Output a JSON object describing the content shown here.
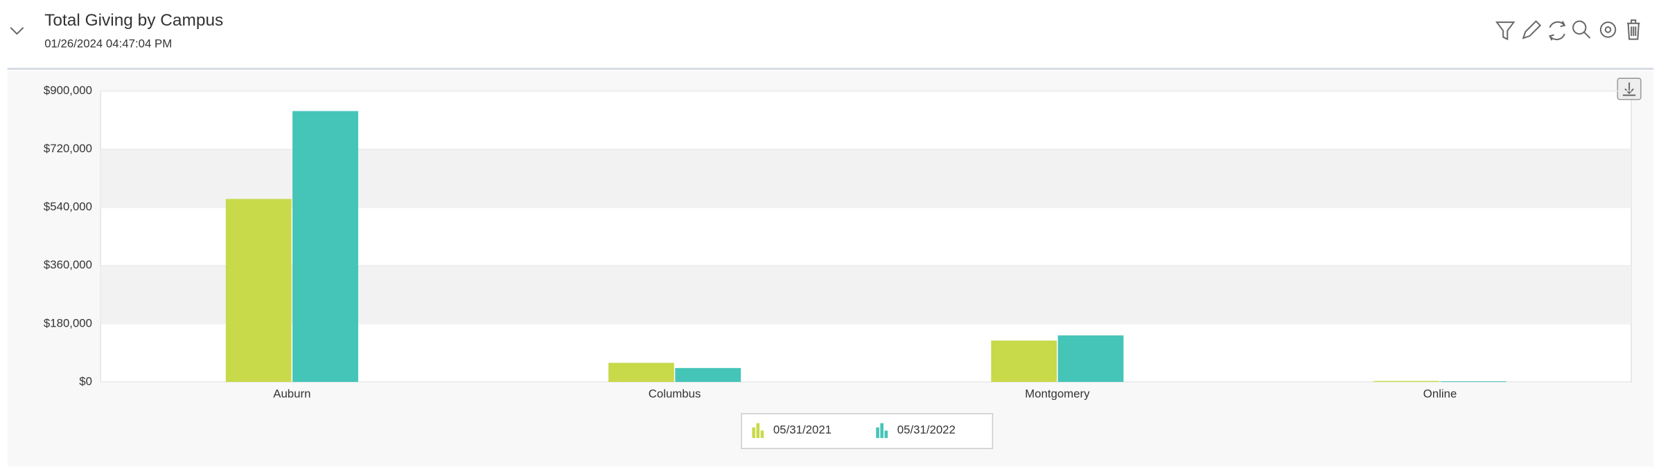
{
  "chart_data": {
    "type": "bar",
    "title": "Total Giving by Campus",
    "subtitle": "01/26/2024 04:47:04 PM",
    "categories": [
      "Auburn",
      "Columbus",
      "Montgomery",
      "Online"
    ],
    "series": [
      {
        "name": "05/31/2021",
        "color": "#c8d94a",
        "values": [
          566000,
          59000,
          128000,
          3000
        ]
      },
      {
        "name": "05/31/2022",
        "color": "#45c4b8",
        "values": [
          838000,
          43000,
          144000,
          2000
        ]
      }
    ],
    "ylim": [
      0,
      900000
    ],
    "yticks": [
      {
        "value": 0,
        "label": "$0"
      },
      {
        "value": 180000,
        "label": "$180,000"
      },
      {
        "value": 360000,
        "label": "$360,000"
      },
      {
        "value": 540000,
        "label": "$540,000"
      },
      {
        "value": 720000,
        "label": "$720,000"
      },
      {
        "value": 900000,
        "label": "$900,000"
      }
    ],
    "grid": true
  }
}
